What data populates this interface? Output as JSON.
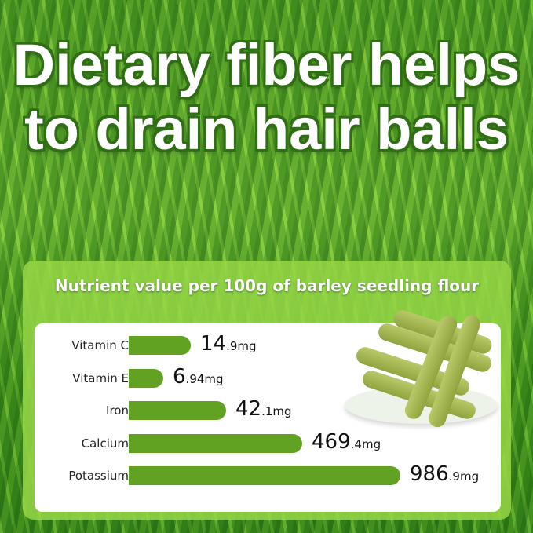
{
  "headline": "Dietary fiber helps to drain hair balls",
  "panel": {
    "subtitle": "Nutrient value per 100g of barley seedling flour"
  },
  "chart_data": {
    "type": "bar",
    "orientation": "horizontal",
    "title": "Nutrient value per 100g of barley seedling flour",
    "categories": [
      "Vitamin C",
      "Vitamin E",
      "Iron",
      "Calcium",
      "Potassium"
    ],
    "values": [
      14.9,
      6.94,
      42.1,
      469.4,
      986.9
    ],
    "unit": "mg",
    "labels": [
      {
        "int": "14",
        "dec": ".9mg"
      },
      {
        "int": "6",
        "dec": ".94mg"
      },
      {
        "int": "42",
        "dec": ".1mg"
      },
      {
        "int": "469",
        "dec": ".4mg"
      },
      {
        "int": "986",
        "dec": ".9mg"
      }
    ],
    "bar_color": "#62a222"
  }
}
